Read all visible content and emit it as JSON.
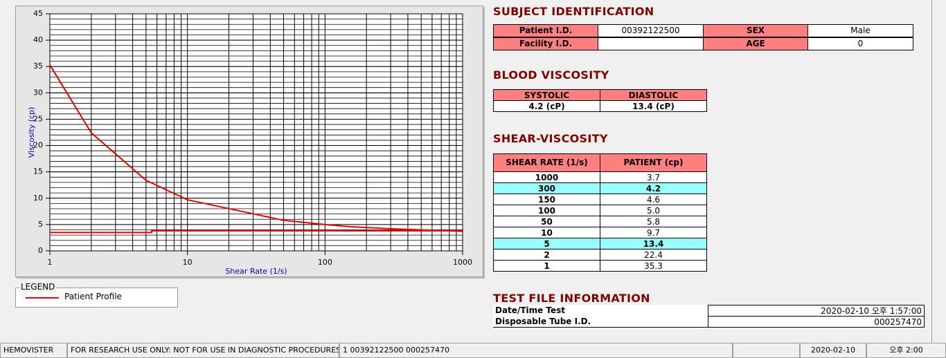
{
  "chart_data": {
    "type": "line",
    "xlabel": "Shear Rate (1/s)",
    "ylabel": "Viscosity (cp)",
    "xscale": "log",
    "xlim": [
      1,
      1000
    ],
    "xticks": [
      1,
      10,
      100,
      1000
    ],
    "ylim": [
      0,
      45
    ],
    "yticks": [
      0,
      5,
      10,
      15,
      20,
      25,
      30,
      35,
      40,
      45
    ],
    "grid": true,
    "minor_grid": true,
    "series": [
      {
        "name": "Patient Profile",
        "color": "#e00000",
        "x": [
          1,
          2,
          5,
          10,
          50,
          100,
          150,
          300,
          1000
        ],
        "values": [
          35.3,
          22.4,
          13.4,
          9.7,
          5.8,
          5.0,
          4.6,
          4.2,
          3.7
        ]
      },
      {
        "color": "#e00000",
        "x": [
          1,
          5.5,
          5.5,
          1000
        ],
        "values": [
          3.5,
          3.5,
          3.8,
          3.8
        ]
      }
    ]
  },
  "legend": {
    "title": "LEGEND"
  },
  "subject": {
    "title": "SUBJECT IDENTIFICATION",
    "fields": [
      {
        "label": "Patient I.D.",
        "value": "00392122500"
      },
      {
        "label": "SEX",
        "value": "Male"
      },
      {
        "label": "Facility I.D."
      },
      {
        "label": "AGE",
        "value": "0"
      }
    ]
  },
  "blood": {
    "title": "BLOOD VISCOSITY",
    "headers": [
      "SYSTOLIC",
      "DIASTOLIC"
    ],
    "values": [
      "4.2 (cP)",
      "13.4 (cP)"
    ]
  },
  "shear": {
    "title": "SHEAR-VISCOSITY",
    "headers": [
      "SHEAR RATE (1/s)",
      "PATIENT (cp)"
    ],
    "rows": [
      {
        "rate": "1000",
        "value": "3.7"
      },
      {
        "rate": "300",
        "value": "4.2",
        "highlight": true
      },
      {
        "rate": "150",
        "value": "4.6"
      },
      {
        "rate": "100",
        "value": "5.0"
      },
      {
        "rate": "50",
        "value": "5.8"
      },
      {
        "rate": "10",
        "value": "9.7"
      },
      {
        "rate": "5",
        "value": "13.4",
        "highlight": true
      },
      {
        "rate": "2",
        "value": "22.4"
      },
      {
        "rate": "1",
        "value": "35.3"
      }
    ]
  },
  "test_file": {
    "title": "TEST FILE INFORMATION",
    "rows": [
      [
        "Date/Time Test",
        "2020-02-10   오후 1:57:00"
      ],
      [
        "Disposable Tube I.D.",
        "000257470"
      ]
    ]
  },
  "status_bar": [
    "HEMOVISTER",
    "FOR RESEARCH USE ONLY: NOT FOR USE IN DIAGNOSTIC PROCEDURES",
    "1  00392122500  000257470",
    "2020-02-10",
    "오후 2:00"
  ]
}
